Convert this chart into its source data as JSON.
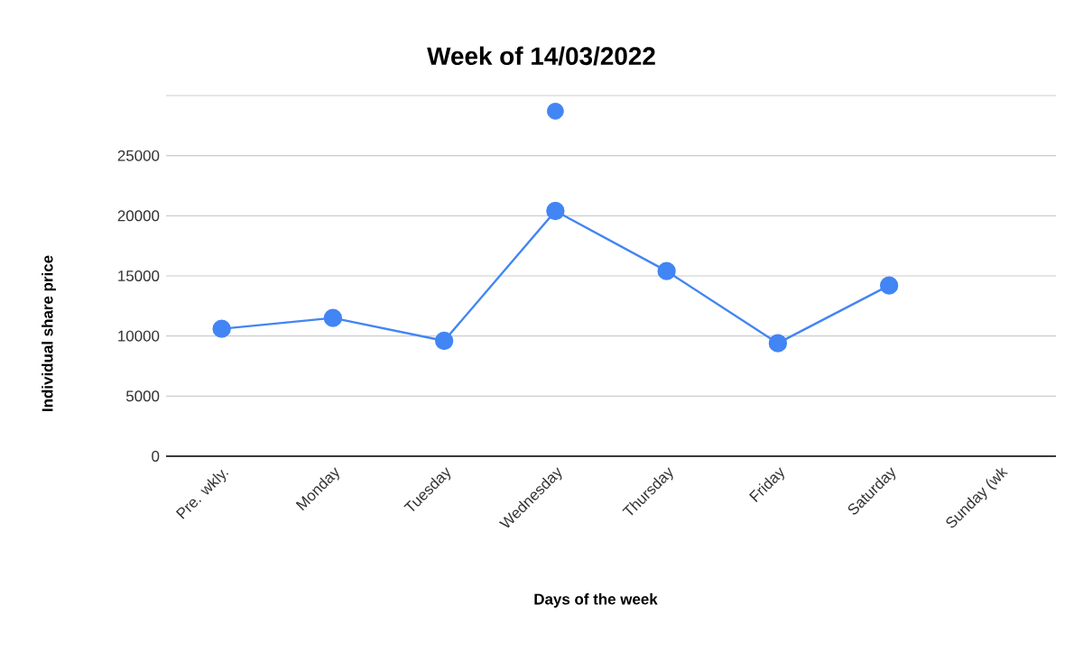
{
  "chart_data": {
    "type": "line",
    "title": "Week of 14/03/2022",
    "xlabel": "Days of the week",
    "ylabel": "Individual share price",
    "categories": [
      "Pre. wkly.",
      "Monday",
      "Tuesday",
      "Wednesday",
      "Thursday",
      "Friday",
      "Saturday",
      "Sunday (wk"
    ],
    "series": [
      {
        "color": "#4285f4",
        "values": [
          10600,
          11500,
          9600,
          20400,
          15400,
          9400,
          14200,
          null
        ]
      },
      {
        "type": "scatter",
        "color": "#4285f4",
        "values": [
          null,
          null,
          null,
          28700,
          null,
          null,
          null,
          null
        ]
      }
    ],
    "ylim": [
      0,
      30000
    ],
    "yticks": [
      0,
      5000,
      10000,
      15000,
      20000,
      25000,
      {
        "value": 30000,
        "label": null
      }
    ],
    "grid": "y",
    "marker": "circle"
  }
}
